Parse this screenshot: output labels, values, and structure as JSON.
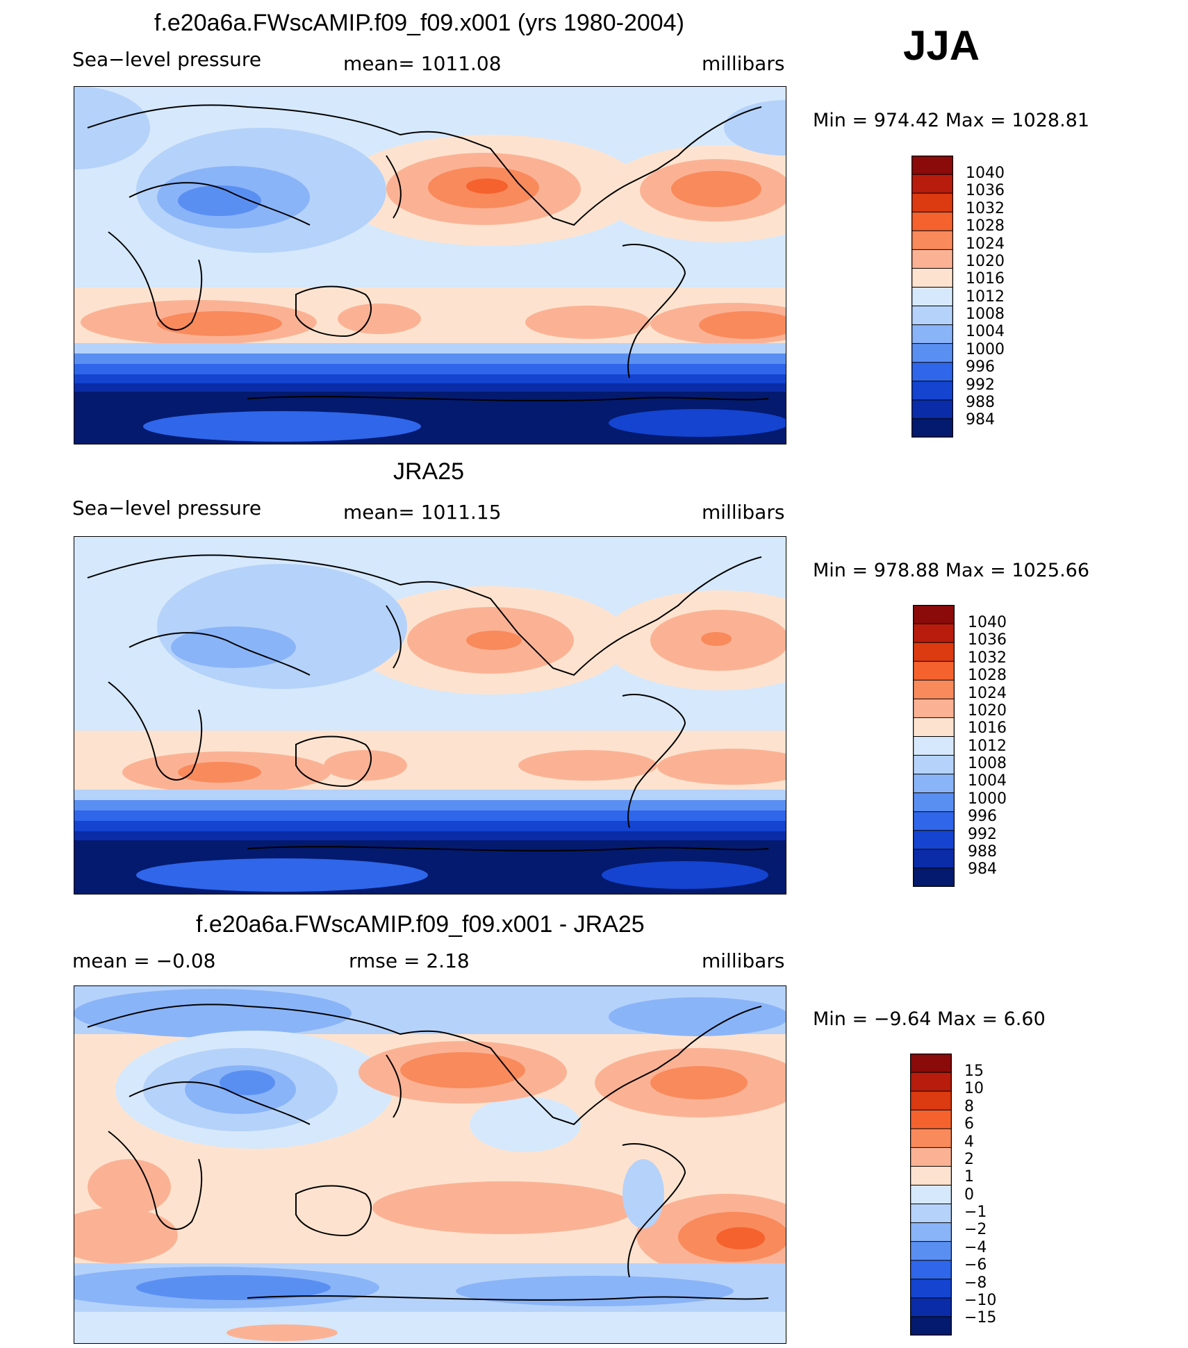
{
  "season": "JJA",
  "panels": [
    {
      "title": "f.e20a6a.FWscAMIP.f09_f09.x001 (yrs 1980-2004)",
      "left": "Sea−level pressure",
      "center": "mean=  1011.08",
      "right": "millibars",
      "minmax": "Min  =  974.42  Max  =  1028.81",
      "levels": [
        "1040",
        "1036",
        "1032",
        "1028",
        "1024",
        "1020",
        "1016",
        "1012",
        "1008",
        "1004",
        "1000",
        "996",
        "992",
        "988",
        "984"
      ]
    },
    {
      "title": "JRA25",
      "left": "Sea−level pressure",
      "center": "mean=  1011.15",
      "right": "millibars",
      "minmax": "Min  =  978.88  Max  =  1025.66",
      "levels": [
        "1040",
        "1036",
        "1032",
        "1028",
        "1024",
        "1020",
        "1016",
        "1012",
        "1008",
        "1004",
        "1000",
        "996",
        "992",
        "988",
        "984"
      ]
    },
    {
      "title": "f.e20a6a.FWscAMIP.f09_f09.x001 - JRA25",
      "left": "mean  =    −0.08",
      "center": "rmse  =     2.18",
      "right": "millibars",
      "minmax": "Min  =    −9.64  Max  =      6.60",
      "levels": [
        "15",
        "10",
        "8",
        "6",
        "4",
        "2",
        "1",
        "0",
        "−1",
        "−2",
        "−4",
        "−6",
        "−8",
        "−10",
        "−15"
      ]
    }
  ],
  "colors": {
    "scale": [
      "#8b0a0a",
      "#b81c0c",
      "#dc3a10",
      "#f5622e",
      "#f98a5c",
      "#fbb294",
      "#fde3cf",
      "#d6e8fb",
      "#b5d2fa",
      "#8ab4f8",
      "#5a8ff2",
      "#2f66ea",
      "#1444d0",
      "#0a2ca8",
      "#031a6e"
    ]
  },
  "chart_data": [
    {
      "type": "heatmap",
      "title": "f.e20a6a.FWscAMIP.f09_f09.x001 (yrs 1980-2004)",
      "variable": "Sea-level pressure",
      "units": "millibars",
      "mean": 1011.08,
      "min": 974.42,
      "max": 1028.81,
      "contour_levels": [
        984,
        988,
        992,
        996,
        1000,
        1004,
        1008,
        1012,
        1016,
        1020,
        1024,
        1028,
        1032,
        1036,
        1040
      ]
    },
    {
      "type": "heatmap",
      "title": "JRA25",
      "variable": "Sea-level pressure",
      "units": "millibars",
      "mean": 1011.15,
      "min": 978.88,
      "max": 1025.66,
      "contour_levels": [
        984,
        988,
        992,
        996,
        1000,
        1004,
        1008,
        1012,
        1016,
        1020,
        1024,
        1028,
        1032,
        1036,
        1040
      ]
    },
    {
      "type": "heatmap",
      "title": "f.e20a6a.FWscAMIP.f09_f09.x001 - JRA25",
      "units": "millibars",
      "mean": -0.08,
      "rmse": 2.18,
      "min": -9.64,
      "max": 6.6,
      "contour_levels": [
        -15,
        -10,
        -8,
        -6,
        -4,
        -2,
        -1,
        0,
        1,
        2,
        4,
        6,
        8,
        10,
        15
      ]
    }
  ]
}
